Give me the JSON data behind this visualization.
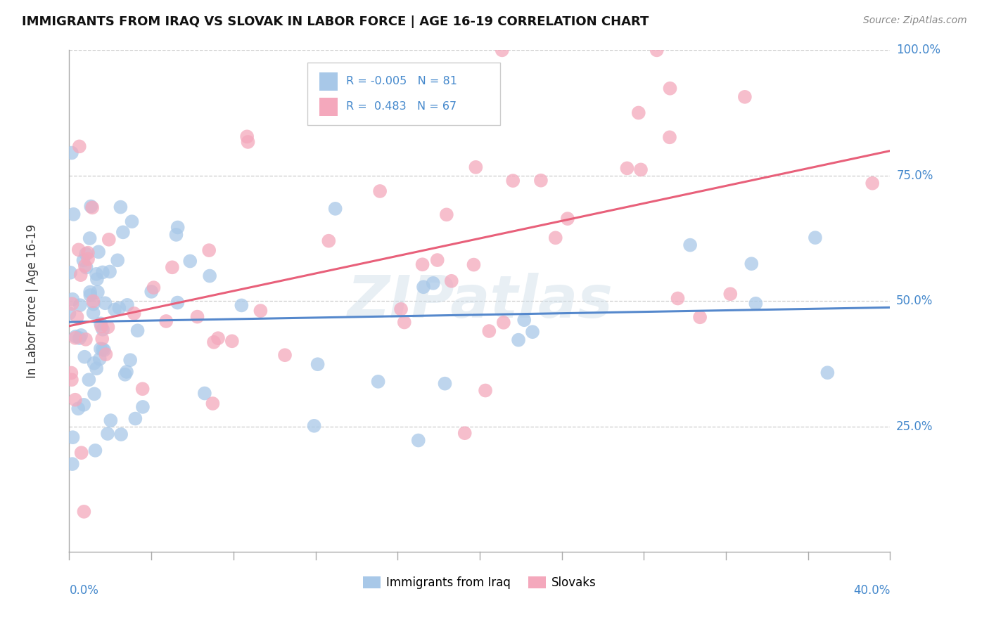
{
  "title": "IMMIGRANTS FROM IRAQ VS SLOVAK IN LABOR FORCE | AGE 16-19 CORRELATION CHART",
  "source": "Source: ZipAtlas.com",
  "ylabel": "In Labor Force | Age 16-19",
  "legend_iraq": {
    "R": "-0.005",
    "N": "81",
    "color": "#a8c8e8"
  },
  "legend_slovak": {
    "R": "0.483",
    "N": "67",
    "color": "#f4a8bc"
  },
  "iraq_color": "#a8c8e8",
  "slovak_color": "#f4a8bc",
  "iraq_line_color": "#5588cc",
  "slovak_line_color": "#e8607a",
  "watermark": "ZIPatlas",
  "xmin": 0.0,
  "xmax": 0.4,
  "ymin": 0.0,
  "ymax": 1.0,
  "title_color": "#111111",
  "source_color": "#888888",
  "axis_label_color": "#4488cc",
  "grid_color": "#cccccc",
  "spine_color": "#aaaaaa"
}
